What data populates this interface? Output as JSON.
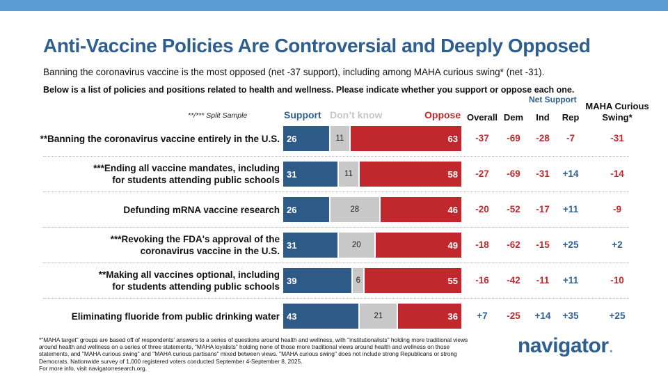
{
  "title": "Anti-Vaccine Policies Are Controversial and Deeply Opposed",
  "subtitle": "Banning the coronavirus vaccine is the most opposed (net -37 support), including among MAHA curious swing* (net -31).",
  "question": "Below is a list of policies and positions related to health and wellness. Please indicate whether you support or oppose each one.",
  "split_note": "**/*** Split Sample",
  "legend": {
    "support": "Support",
    "dont_know": "Don’t know",
    "oppose": "Oppose"
  },
  "net_support_label": "Net Support",
  "columns": [
    "Overall",
    "Dem",
    "Ind",
    "Rep"
  ],
  "maha_column": "MAHA Curious Swing*",
  "colors": {
    "support": "#2e5a87",
    "dont_know": "#c8c8c8",
    "oppose": "#c0282d",
    "positive": "#2e5f8f",
    "negative": "#c0282d",
    "title": "#2e5f8f",
    "accent": "#5b9bd1"
  },
  "chart_data": {
    "type": "bar",
    "stacked": true,
    "orientation": "horizontal",
    "categories": [
      [
        "**Banning the coronavirus vaccine entirely in the U.S."
      ],
      [
        "***Ending all vaccine mandates, including",
        "for students attending public schools"
      ],
      [
        "Defunding mRNA vaccine research"
      ],
      [
        "***Revoking the FDA's approval of the",
        "coronavirus vaccine in the U.S."
      ],
      [
        "**Making all vaccines optional, including",
        "for students attending public schools"
      ],
      [
        "Eliminating fluoride from public drinking water"
      ]
    ],
    "series": [
      {
        "name": "Support",
        "values": [
          26,
          31,
          26,
          31,
          39,
          43
        ]
      },
      {
        "name": "Don’t know",
        "values": [
          11,
          11,
          28,
          20,
          6,
          21
        ]
      },
      {
        "name": "Oppose",
        "values": [
          63,
          58,
          46,
          49,
          55,
          36
        ]
      }
    ],
    "net_support": {
      "Overall": [
        "-37",
        "-27",
        "-20",
        "-18",
        "-16",
        "+7"
      ],
      "Dem": [
        "-69",
        "-69",
        "-52",
        "-62",
        "-42",
        "-25"
      ],
      "Ind": [
        "-28",
        "-31",
        "-17",
        "-15",
        "-11",
        "+14"
      ],
      "Rep": [
        "-7",
        "+14",
        "+11",
        "+25",
        "+11",
        "+35"
      ],
      "MAHA Curious Swing*": [
        "-31",
        "-14",
        "-9",
        "+2",
        "-10",
        "+25"
      ]
    },
    "xlim": [
      0,
      100
    ]
  },
  "footnote": [
    "*\"MAHA target\" groups are based off of respondents' answers to a series of questions around health and wellness, with \"institutionalists\" holding more traditional views",
    "around health and wellness on a series of three statements, \"MAHA loyalists\" holding none of those more traditional views around health and wellness on those",
    "statements, and \"MAHA curious swing\" and \"MAHA curious partisans\" mixed between views. \"MAHA curious swing\" does not include strong Republicans or strong",
    "Democrats. Nationwide survey of 1,000 registered voters conducted September 4-September 8, 2025.",
    "For more info, visit navigatorresearch.org."
  ],
  "logo": {
    "text": "navigator",
    "dot": "."
  }
}
